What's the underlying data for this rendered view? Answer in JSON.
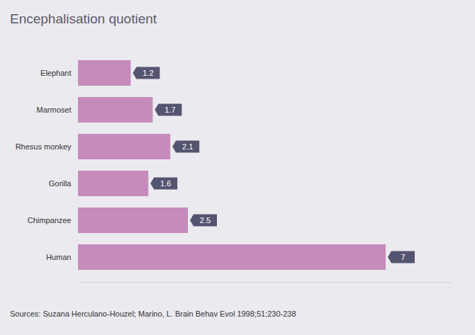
{
  "chart_data": {
    "type": "bar",
    "orientation": "horizontal",
    "title": "Encephalisation quotient",
    "categories": [
      "Elephant",
      "Marmoset",
      "Rhesus monkey",
      "Gorilla",
      "Chimpanzee",
      "Human"
    ],
    "values": [
      1.2,
      1.7,
      2.1,
      1.6,
      2.5,
      7
    ],
    "color": "#c68bbb",
    "data_labels": true,
    "tick_labels": "y",
    "xlim": [
      0,
      8.5
    ],
    "caption": "Sources: Suzana Herculano-Houzel; Marino, L. Brain Behav Evol 1998;51;230-238"
  }
}
